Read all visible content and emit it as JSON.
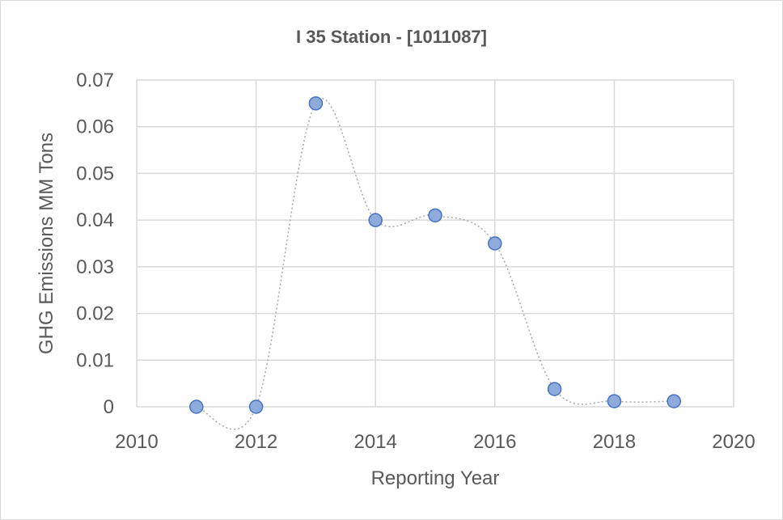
{
  "chart_data": {
    "type": "scatter",
    "title": "I 35 Station - [1011087]",
    "xlabel": "Reporting Year",
    "ylabel": "GHG Emissions MM Tons",
    "xlim": [
      2010,
      2020
    ],
    "ylim": [
      0,
      0.07
    ],
    "xticks": [
      "2010",
      "2012",
      "2014",
      "2016",
      "2018",
      "2020"
    ],
    "yticks": [
      "0",
      "0.01",
      "0.02",
      "0.03",
      "0.04",
      "0.05",
      "0.06",
      "0.07"
    ],
    "grid": true,
    "legend": "none",
    "trendline": "smoothed-dotted",
    "colors": {
      "marker_fill": "#8fabdc",
      "marker_stroke": "#4472c4",
      "line": "#a6a6a6",
      "grid": "#d9d9d9",
      "text": "#595959"
    },
    "series": [
      {
        "x": [
          2011,
          2012,
          2013,
          2014,
          2015,
          2016,
          2017,
          2018,
          2019
        ],
        "y": [
          0,
          0,
          0.065,
          0.04,
          0.041,
          0.035,
          0.0038,
          0.0012,
          0.0012
        ]
      }
    ]
  }
}
